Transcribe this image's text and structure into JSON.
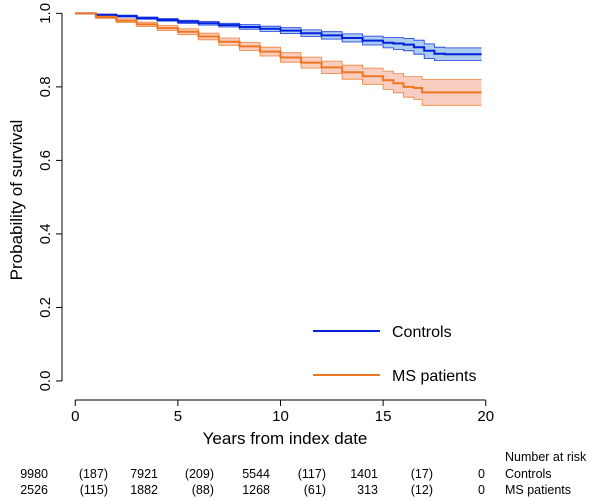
{
  "chart_data": {
    "type": "line",
    "xlabel": "Years from index date",
    "ylabel": "Probability of survival",
    "xlim": [
      -0.5,
      20.5
    ],
    "ylim": [
      -0.03,
      1.02
    ],
    "xticks": [
      0,
      5,
      10,
      15,
      20
    ],
    "xtick_labels": [
      "0",
      "5",
      "10",
      "15",
      "20"
    ],
    "yticks": [
      0.0,
      0.2,
      0.4,
      0.6,
      0.8,
      1.0
    ],
    "ytick_labels": [
      "0.0",
      "0.2",
      "0.4",
      "0.6",
      "0.8",
      "1.0"
    ],
    "grid": false,
    "legend_position": "bottom-right",
    "series": [
      {
        "name": "Controls",
        "color": "#0022dd",
        "band_color": "#8ab8e8",
        "x": [
          0,
          1,
          2,
          3,
          4,
          5,
          6,
          7,
          8,
          9,
          10,
          11,
          12,
          13,
          14,
          15,
          15.5,
          16,
          16.5,
          17,
          17.5,
          18,
          19,
          19.8
        ],
        "y": [
          1.0,
          0.996,
          0.992,
          0.987,
          0.982,
          0.977,
          0.973,
          0.968,
          0.963,
          0.958,
          0.953,
          0.946,
          0.94,
          0.933,
          0.926,
          0.92,
          0.918,
          0.915,
          0.908,
          0.898,
          0.89,
          0.889,
          0.889,
          0.889
        ],
        "lower": [
          1.0,
          0.994,
          0.99,
          0.984,
          0.979,
          0.973,
          0.968,
          0.963,
          0.957,
          0.951,
          0.945,
          0.937,
          0.93,
          0.922,
          0.914,
          0.906,
          0.902,
          0.898,
          0.889,
          0.877,
          0.872,
          0.872,
          0.872,
          0.872
        ],
        "upper": [
          1.0,
          0.998,
          0.995,
          0.99,
          0.986,
          0.981,
          0.978,
          0.973,
          0.969,
          0.965,
          0.961,
          0.955,
          0.95,
          0.944,
          0.938,
          0.934,
          0.934,
          0.932,
          0.927,
          0.917,
          0.908,
          0.906,
          0.906,
          0.906
        ]
      },
      {
        "name": "MS patients",
        "color": "#ee7722",
        "band_color": "#f7b9a6",
        "x": [
          0,
          1,
          2,
          3,
          4,
          5,
          6,
          7,
          8,
          9,
          10,
          11,
          12,
          13,
          14,
          15,
          15.5,
          16,
          16.5,
          16.9,
          17.5,
          18,
          19,
          19.8
        ],
        "y": [
          1.0,
          0.99,
          0.98,
          0.97,
          0.96,
          0.95,
          0.937,
          0.923,
          0.91,
          0.896,
          0.88,
          0.866,
          0.853,
          0.84,
          0.829,
          0.818,
          0.81,
          0.8,
          0.797,
          0.785,
          0.785,
          0.785,
          0.785,
          0.785
        ],
        "lower": [
          1.0,
          0.986,
          0.975,
          0.964,
          0.953,
          0.942,
          0.928,
          0.913,
          0.899,
          0.884,
          0.867,
          0.851,
          0.836,
          0.821,
          0.807,
          0.793,
          0.784,
          0.772,
          0.766,
          0.75,
          0.75,
          0.75,
          0.75,
          0.75
        ],
        "upper": [
          1.0,
          0.994,
          0.985,
          0.976,
          0.967,
          0.958,
          0.946,
          0.933,
          0.921,
          0.908,
          0.893,
          0.881,
          0.87,
          0.859,
          0.851,
          0.843,
          0.836,
          0.828,
          0.828,
          0.82,
          0.82,
          0.82,
          0.82,
          0.82
        ]
      }
    ],
    "risk_table": {
      "title": "Number at risk",
      "rows": [
        {
          "group": "Controls",
          "values": [
            "9980",
            "(187)",
            "7921",
            "(209)",
            "5544",
            "(117)",
            "1401",
            "(17)",
            "0"
          ]
        },
        {
          "group": "MS patients",
          "values": [
            "2526",
            "(115)",
            "1882",
            "(88)",
            "1268",
            "(61)",
            "313",
            "(12)",
            "0"
          ]
        }
      ]
    }
  }
}
